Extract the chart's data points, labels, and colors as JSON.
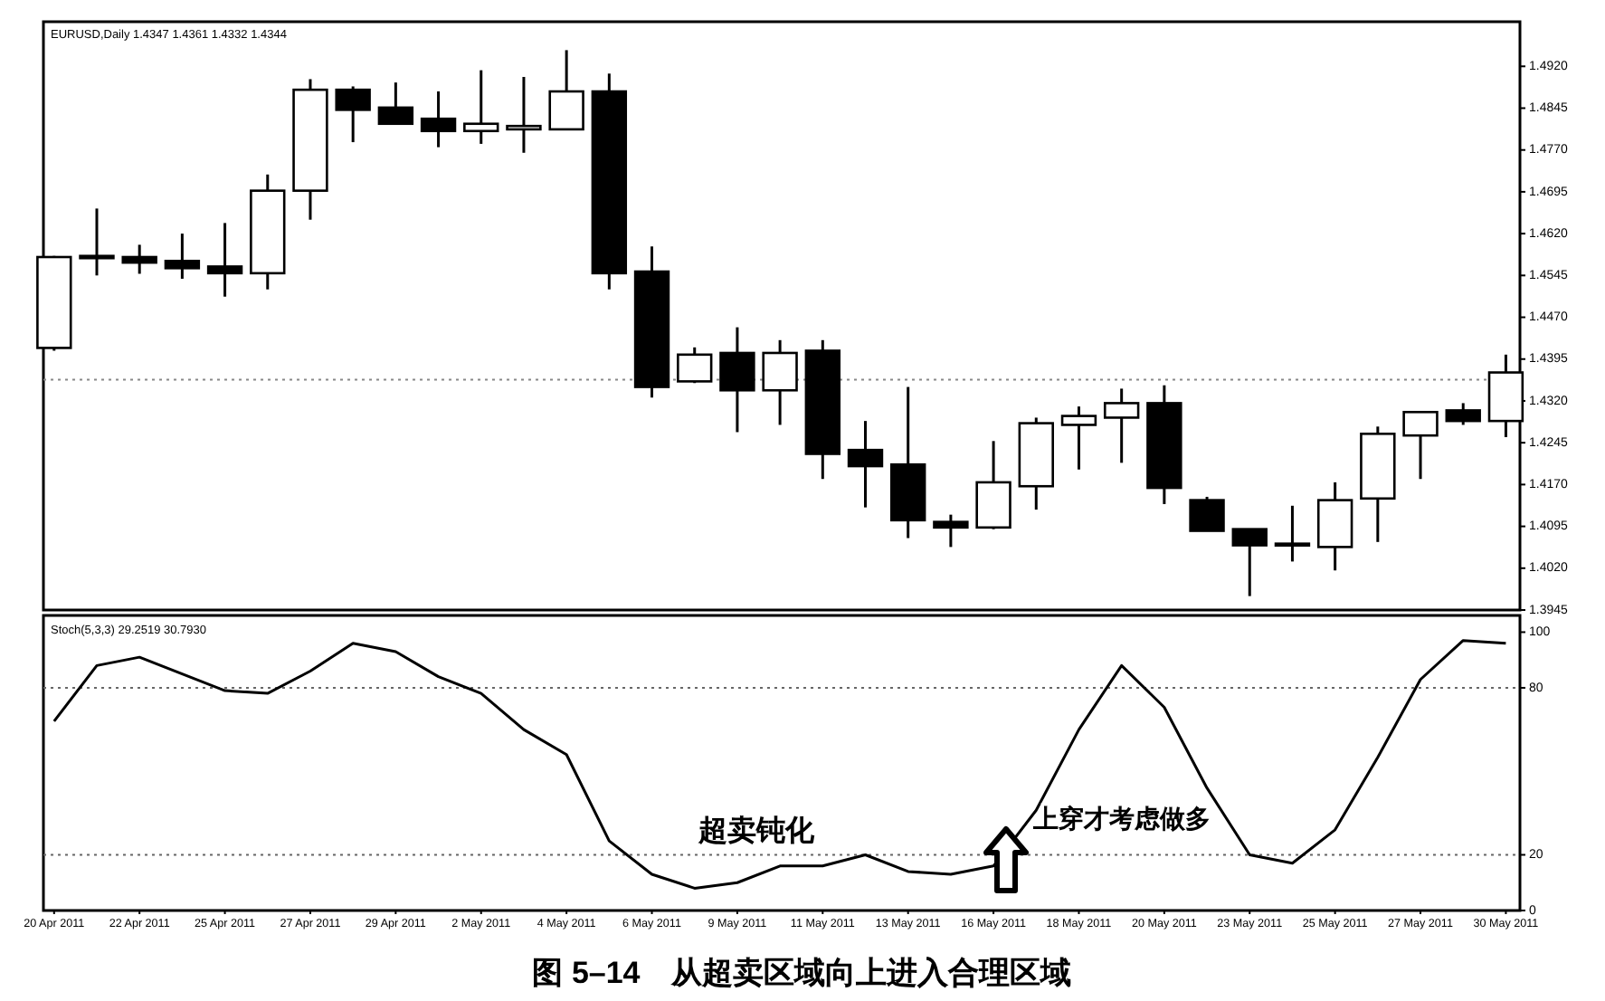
{
  "chart_data": [
    {
      "type": "candlestick",
      "ohlc": [
        [
          1.4415,
          1.458,
          1.441,
          1.4578
        ],
        [
          1.4576,
          1.4665,
          1.4545,
          1.458
        ],
        [
          1.4578,
          1.46,
          1.4548,
          1.4568
        ],
        [
          1.4571,
          1.462,
          1.4539,
          1.4558
        ],
        [
          1.4561,
          1.4639,
          1.4507,
          1.4549
        ],
        [
          1.4549,
          1.4726,
          1.452,
          1.4697
        ],
        [
          1.4697,
          1.4897,
          1.4645,
          1.4878
        ],
        [
          1.4878,
          1.4884,
          1.4784,
          1.4842
        ],
        [
          1.4846,
          1.4891,
          1.4817,
          1.4817
        ],
        [
          1.4826,
          1.4875,
          1.4775,
          1.4804
        ],
        [
          1.4804,
          1.4913,
          1.4781,
          1.4817
        ],
        [
          1.4807,
          1.4901,
          1.4765,
          1.4813
        ],
        [
          1.4807,
          1.4949,
          1.4807,
          1.4875
        ],
        [
          1.4875,
          1.4907,
          1.452,
          1.4549
        ],
        [
          1.4552,
          1.4597,
          1.4326,
          1.4345
        ],
        [
          1.4355,
          1.4416,
          1.4352,
          1.4403
        ],
        [
          1.4406,
          1.4452,
          1.4264,
          1.4339
        ],
        [
          1.4339,
          1.4429,
          1.4277,
          1.4406
        ],
        [
          1.441,
          1.4429,
          1.418,
          1.4225
        ],
        [
          1.4232,
          1.4284,
          1.4129,
          1.4203
        ],
        [
          1.4206,
          1.4345,
          1.4074,
          1.4106
        ],
        [
          1.4103,
          1.4116,
          1.4058,
          1.4093
        ],
        [
          1.4093,
          1.4248,
          1.409,
          1.4174
        ],
        [
          1.4167,
          1.429,
          1.4125,
          1.428
        ],
        [
          1.4277,
          1.431,
          1.4197,
          1.4293
        ],
        [
          1.429,
          1.4342,
          1.4209,
          1.4316
        ],
        [
          1.4316,
          1.4348,
          1.4135,
          1.4164
        ],
        [
          1.4142,
          1.4148,
          1.4087,
          1.4087
        ],
        [
          1.409,
          1.409,
          1.397,
          1.4061
        ],
        [
          1.4061,
          1.4132,
          1.4032,
          1.4064
        ],
        [
          1.4058,
          1.4174,
          1.4016,
          1.4142
        ],
        [
          1.4145,
          1.4274,
          1.4067,
          1.4261
        ],
        [
          1.4258,
          1.43,
          1.418,
          1.43
        ],
        [
          1.4303,
          1.4316,
          1.4277,
          1.4284
        ],
        [
          1.4284,
          1.4403,
          1.4255,
          1.4371
        ]
      ],
      "ylim": [
        1.3945,
        1.5
      ],
      "yticks": [
        {
          "value": 1.492,
          "label": "1.4920"
        },
        1.4845,
        {
          "value": 1.477,
          "label": "1.4770"
        },
        1.4695,
        {
          "value": 1.462,
          "label": "1.4620"
        },
        1.4545,
        {
          "value": 1.447,
          "label": "1.4470"
        },
        1.4395,
        {
          "value": 1.432,
          "label": "1.4320"
        },
        1.4245,
        {
          "value": 1.417,
          "label": "1.4170"
        },
        1.4095,
        {
          "value": 1.402,
          "label": "1.4020"
        },
        1.3945
      ],
      "ref_lines": [
        {
          "axis": "y",
          "value": 1.4358,
          "color": "#888888",
          "line_style": "dotted"
        }
      ],
      "tick_labels": "y",
      "annotations": [
        "EURUSD,Daily 1.4347 1.4361 1.4332 1.4344"
      ]
    },
    {
      "type": "line",
      "categories": [
        "20 Apr 2011",
        null,
        "22 Apr 2011",
        null,
        "25 Apr 2011",
        null,
        "27 Apr 2011",
        null,
        "29 Apr 2011",
        null,
        "2 May 2011",
        null,
        "4 May 2011",
        null,
        "6 May 2011",
        null,
        "9 May 2011",
        null,
        "11 May 2011",
        null,
        "13 May 2011",
        null,
        "16 May 2011",
        null,
        "18 May 2011",
        null,
        "20 May 2011",
        null,
        "23 May 2011",
        null,
        "25 May 2011",
        null,
        "27 May 2011",
        null,
        "30 May 2011"
      ],
      "values": [
        68,
        88,
        91,
        85,
        79,
        78,
        86,
        96,
        93,
        84,
        78,
        65,
        56,
        25,
        13,
        8,
        10,
        16,
        16,
        20,
        14,
        13,
        16,
        36,
        65,
        88,
        73,
        44,
        20,
        17,
        29,
        55,
        83,
        97,
        96
      ],
      "color": "#000000",
      "ylim": [
        0,
        106
      ],
      "yticks": [
        0,
        20,
        80,
        100
      ],
      "ref_lines": [
        {
          "axis": "y",
          "value": 80,
          "color": "#666666",
          "line_style": "dotted"
        },
        {
          "axis": "y",
          "value": 20,
          "color": "#666666",
          "line_style": "dotted"
        }
      ],
      "annotations": [
        "Stoch(5,3,3) 29.2519 30.7930",
        "超卖钝化",
        "上穿才考虑做多",
        "图 5–14　从超卖区域向上进入合理区域"
      ]
    }
  ]
}
